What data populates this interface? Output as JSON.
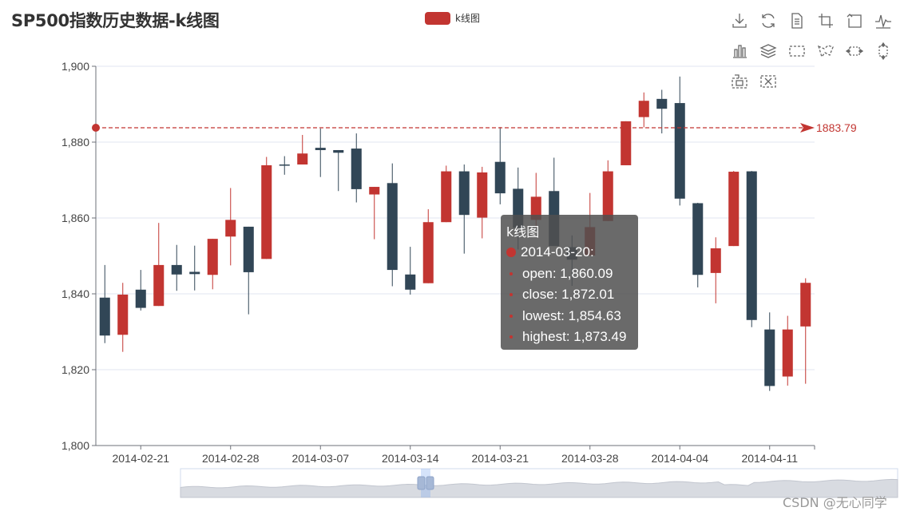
{
  "title": "SP500指数历史数据-k线图",
  "legend": {
    "label": "k线图",
    "color": "#c23531"
  },
  "toolbox": [
    {
      "name": "save-image-icon"
    },
    {
      "name": "restore-icon"
    },
    {
      "name": "data-view-icon"
    },
    {
      "name": "zoom-icon"
    },
    {
      "name": "zoom-back-icon"
    },
    {
      "name": "line-chart-icon"
    },
    {
      "name": "bar-chart-icon"
    },
    {
      "name": "stack-icon"
    },
    {
      "name": "brush-rect-icon"
    },
    {
      "name": "brush-polygon-icon"
    },
    {
      "name": "brush-line-x-icon"
    },
    {
      "name": "brush-line-y-icon"
    },
    {
      "name": "brush-keep-icon"
    },
    {
      "name": "brush-clear-icon"
    }
  ],
  "watermark": "CSDN @无心同学",
  "tooltip": {
    "series": "k线图",
    "date": "2014-03-20:",
    "open": "open: 1,860.09",
    "close": "close: 1,872.01",
    "lowest": "lowest: 1,854.63",
    "highest": "highest: 1,873.49"
  },
  "chart_data": {
    "type": "candlestick",
    "title": "SP500指数历史数据-k线图",
    "ylim": [
      1800,
      1900
    ],
    "yticks": [
      1800,
      1820,
      1840,
      1860,
      1880,
      1900
    ],
    "ytick_labels": [
      "1,800",
      "1,820",
      "1,840",
      "1,860",
      "1,880",
      "1,900"
    ],
    "xtick_labels": [
      "2014-02-21",
      "2014-02-28",
      "2014-03-07",
      "2014-03-14",
      "2014-03-21",
      "2014-03-28",
      "2014-04-04",
      "2014-04-11"
    ],
    "up_color": "#c23531",
    "down_color": "#314656",
    "markline": {
      "value": 1883.79,
      "label": "1883.79",
      "color": "#c23531"
    },
    "candles": [
      {
        "date": "2014-02-19",
        "open": 1839.0,
        "close": 1829.0,
        "low": 1827.0,
        "high": 1847.6
      },
      {
        "date": "2014-02-20",
        "open": 1829.2,
        "close": 1839.8,
        "low": 1824.7,
        "high": 1842.9
      },
      {
        "date": "2014-02-21",
        "open": 1841.1,
        "close": 1836.3,
        "low": 1835.6,
        "high": 1846.3
      },
      {
        "date": "2014-02-24",
        "open": 1836.8,
        "close": 1847.6,
        "low": 1836.8,
        "high": 1858.7
      },
      {
        "date": "2014-02-25",
        "open": 1847.6,
        "close": 1845.1,
        "low": 1840.8,
        "high": 1852.9
      },
      {
        "date": "2014-02-26",
        "open": 1845.8,
        "close": 1845.2,
        "low": 1840.9,
        "high": 1852.7
      },
      {
        "date": "2014-02-27",
        "open": 1845.0,
        "close": 1854.5,
        "low": 1841.2,
        "high": 1854.5
      },
      {
        "date": "2014-02-28",
        "open": 1855.1,
        "close": 1859.5,
        "low": 1847.5,
        "high": 1867.9
      },
      {
        "date": "2014-03-03",
        "open": 1857.7,
        "close": 1845.7,
        "low": 1834.6,
        "high": 1857.7
      },
      {
        "date": "2014-03-04",
        "open": 1849.2,
        "close": 1873.9,
        "low": 1849.2,
        "high": 1876.1
      },
      {
        "date": "2014-03-05",
        "open": 1874.1,
        "close": 1873.8,
        "low": 1871.4,
        "high": 1876.3
      },
      {
        "date": "2014-03-06",
        "open": 1874.1,
        "close": 1877.0,
        "low": 1874.1,
        "high": 1881.9
      },
      {
        "date": "2014-03-07",
        "open": 1878.5,
        "close": 1877.9,
        "low": 1870.8,
        "high": 1883.6
      },
      {
        "date": "2014-03-10",
        "open": 1877.9,
        "close": 1877.2,
        "low": 1867.1,
        "high": 1877.9
      },
      {
        "date": "2014-03-11",
        "open": 1878.3,
        "close": 1867.6,
        "low": 1864.1,
        "high": 1882.3
      },
      {
        "date": "2014-03-12",
        "open": 1866.2,
        "close": 1868.2,
        "low": 1854.4,
        "high": 1868.2
      },
      {
        "date": "2014-03-13",
        "open": 1869.2,
        "close": 1846.3,
        "low": 1842.0,
        "high": 1874.4
      },
      {
        "date": "2014-03-14",
        "open": 1845.1,
        "close": 1841.1,
        "low": 1839.8,
        "high": 1852.4
      },
      {
        "date": "2014-03-17",
        "open": 1842.8,
        "close": 1858.9,
        "low": 1842.8,
        "high": 1862.3
      },
      {
        "date": "2014-03-18",
        "open": 1858.9,
        "close": 1872.3,
        "low": 1858.9,
        "high": 1873.8
      },
      {
        "date": "2014-03-19",
        "open": 1872.3,
        "close": 1860.8,
        "low": 1850.6,
        "high": 1874.1
      },
      {
        "date": "2014-03-20",
        "open": 1860.09,
        "close": 1872.01,
        "low": 1854.63,
        "high": 1873.49
      },
      {
        "date": "2014-03-21",
        "open": 1874.8,
        "close": 1866.5,
        "low": 1863.6,
        "high": 1883.97
      },
      {
        "date": "2014-03-24",
        "open": 1867.7,
        "close": 1857.4,
        "low": 1851.7,
        "high": 1873.3
      },
      {
        "date": "2014-03-25",
        "open": 1859.5,
        "close": 1865.6,
        "low": 1857.5,
        "high": 1871.9
      },
      {
        "date": "2014-03-26",
        "open": 1867.1,
        "close": 1852.6,
        "low": 1852.6,
        "high": 1875.9
      },
      {
        "date": "2014-03-27",
        "open": 1852.3,
        "close": 1849.0,
        "low": 1842.1,
        "high": 1855.4
      },
      {
        "date": "2014-03-28",
        "open": 1850.1,
        "close": 1857.6,
        "low": 1850.1,
        "high": 1866.6
      },
      {
        "date": "2014-03-31",
        "open": 1859.2,
        "close": 1872.3,
        "low": 1859.2,
        "high": 1875.2
      },
      {
        "date": "2014-04-01",
        "open": 1873.9,
        "close": 1885.5,
        "low": 1873.9,
        "high": 1885.5
      },
      {
        "date": "2014-04-02",
        "open": 1886.6,
        "close": 1890.9,
        "low": 1883.9,
        "high": 1893.1
      },
      {
        "date": "2014-04-03",
        "open": 1891.4,
        "close": 1888.8,
        "low": 1882.3,
        "high": 1893.8
      },
      {
        "date": "2014-04-04",
        "open": 1890.3,
        "close": 1865.1,
        "low": 1863.3,
        "high": 1897.3
      },
      {
        "date": "2014-04-07",
        "open": 1863.9,
        "close": 1845.0,
        "low": 1841.7,
        "high": 1864.0
      },
      {
        "date": "2014-04-08",
        "open": 1845.5,
        "close": 1852.0,
        "low": 1837.5,
        "high": 1854.9
      },
      {
        "date": "2014-04-09",
        "open": 1852.6,
        "close": 1872.2,
        "low": 1852.6,
        "high": 1872.4
      },
      {
        "date": "2014-04-10",
        "open": 1872.3,
        "close": 1833.1,
        "low": 1831.2,
        "high": 1872.4
      },
      {
        "date": "2014-04-11",
        "open": 1830.6,
        "close": 1815.7,
        "low": 1814.4,
        "high": 1835.1
      },
      {
        "date": "2014-04-14",
        "open": 1818.2,
        "close": 1830.6,
        "low": 1815.8,
        "high": 1834.2
      },
      {
        "date": "2014-04-15",
        "open": 1831.4,
        "close": 1842.9,
        "low": 1816.3,
        "high": 1844.1
      }
    ]
  }
}
